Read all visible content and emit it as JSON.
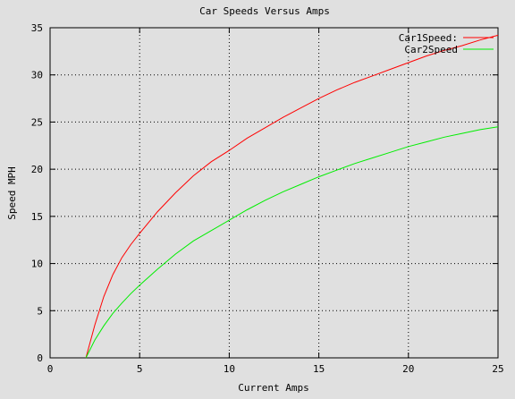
{
  "chart_data": {
    "type": "line",
    "title": "Car Speeds Versus Amps",
    "xlabel": "Current Amps",
    "ylabel": "Speed MPH",
    "xlim": [
      0,
      25
    ],
    "ylim": [
      0,
      35
    ],
    "xticks": [
      0,
      5,
      10,
      15,
      20,
      25
    ],
    "yticks": [
      0,
      5,
      10,
      15,
      20,
      25,
      30,
      35
    ],
    "grid": true,
    "legend_position": "top-right",
    "series": [
      {
        "name": "Car1Speed:",
        "color": "#ff0000",
        "x": [
          2,
          2.5,
          3,
          3.5,
          4,
          4.5,
          5,
          6,
          7,
          8,
          9,
          10,
          11,
          12,
          13,
          14,
          15,
          16,
          17,
          18,
          19,
          20,
          21,
          22,
          23,
          24,
          25
        ],
        "y": [
          0,
          3.5,
          6.5,
          8.8,
          10.6,
          12.0,
          13.2,
          15.5,
          17.5,
          19.3,
          20.8,
          22.0,
          23.3,
          24.4,
          25.5,
          26.5,
          27.5,
          28.4,
          29.2,
          29.9,
          30.6,
          31.3,
          32.0,
          32.6,
          33.1,
          33.7,
          34.2
        ]
      },
      {
        "name": "Car2Speed",
        "color": "#00ee00",
        "x": [
          2,
          2.5,
          3,
          3.5,
          4,
          4.5,
          5,
          6,
          7,
          8,
          9,
          10,
          11,
          12,
          13,
          14,
          15,
          16,
          17,
          18,
          19,
          20,
          21,
          22,
          23,
          24,
          25
        ],
        "y": [
          0,
          1.9,
          3.4,
          4.7,
          5.8,
          6.8,
          7.7,
          9.4,
          11.0,
          12.4,
          13.5,
          14.6,
          15.7,
          16.7,
          17.6,
          18.4,
          19.2,
          19.9,
          20.6,
          21.2,
          21.8,
          22.4,
          22.9,
          23.4,
          23.8,
          24.2,
          24.5
        ]
      }
    ]
  }
}
